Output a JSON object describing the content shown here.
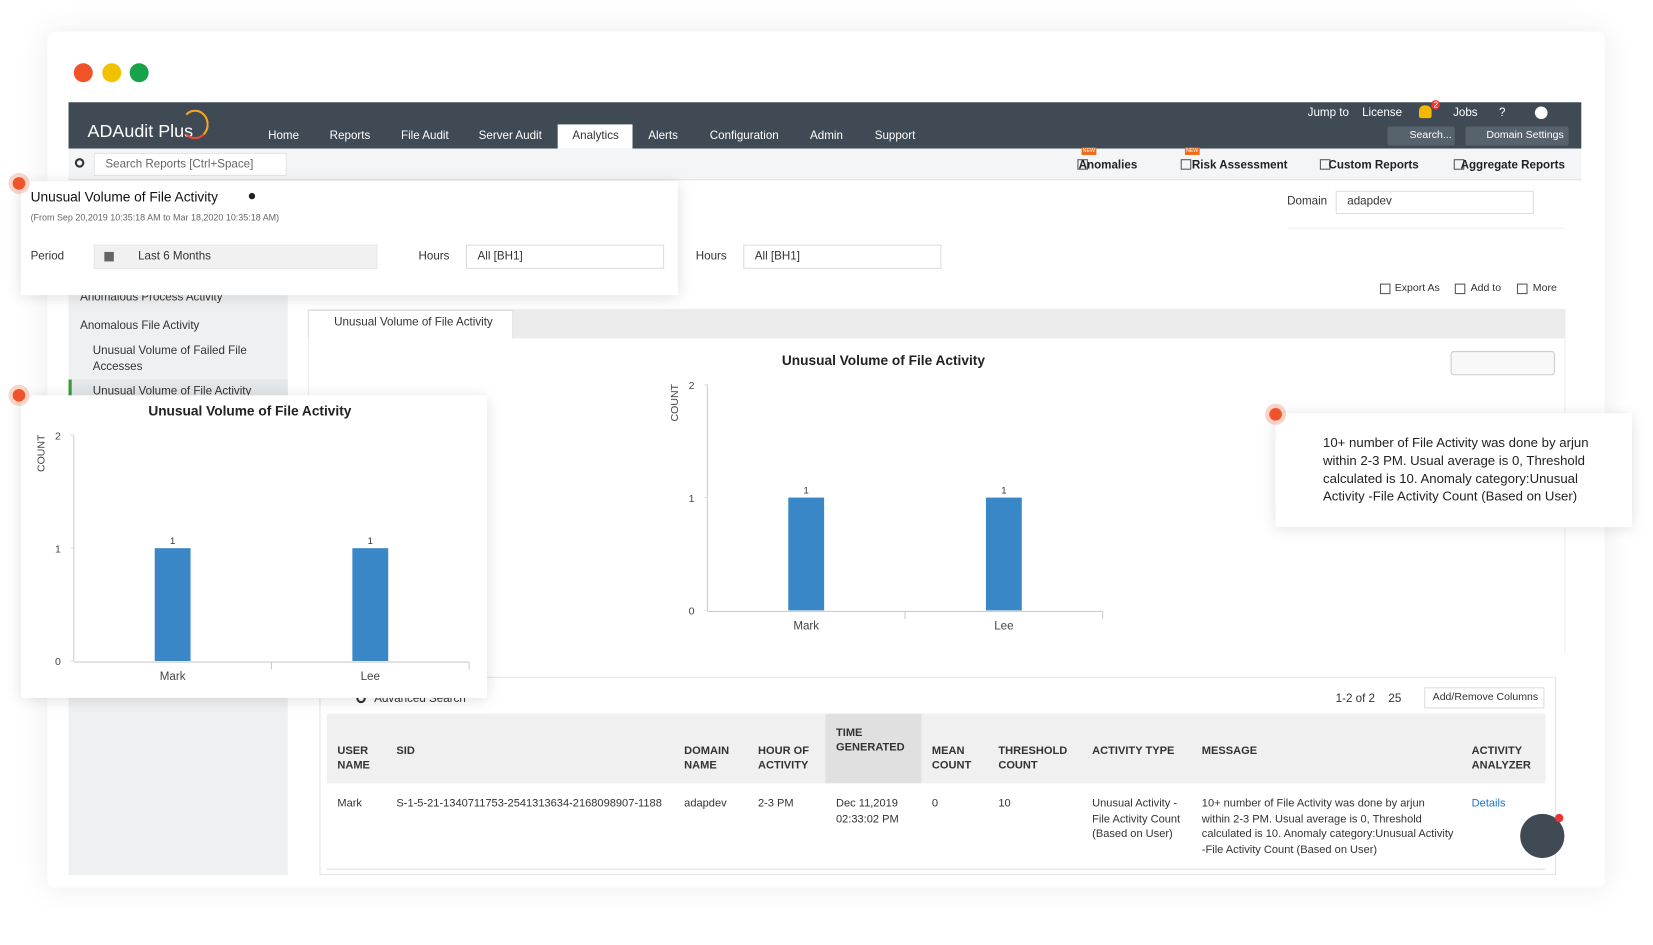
{
  "app": {
    "logo": "ADAudit Plus",
    "nav": [
      "Home",
      "Reports",
      "File Audit",
      "Server Audit",
      "Analytics",
      "Alerts",
      "Configuration",
      "Admin",
      "Support"
    ],
    "top_links": [
      "Jump to",
      "License",
      "Jobs",
      "?"
    ],
    "notification_count": "2",
    "search_button": "Search...",
    "domain_settings": "Domain Settings",
    "search_placeholder": "Search Reports [Ctrl+Space]",
    "new_badge": "NEW",
    "toolbar": [
      "Anomalies",
      "Risk Assessment",
      "Custom Reports",
      "Aggregate Reports"
    ]
  },
  "sidebar": [
    "Anomalous Process Activity",
    "Anomalous File Activity",
    "Unusual Volume of Failed File Accesses",
    "Unusual Volume of File Activity"
  ],
  "report": {
    "title": "Unusual Volume of File Activity",
    "range": "(From Sep 20,2019 10:35:18 AM to Mar 18,2020 10:35:18 AM)",
    "period_label": "Period",
    "period": "Last 6 Months",
    "hours_label": "Hours",
    "hours": "All [BH1]",
    "domain_label": "Domain",
    "domain": "adapdev",
    "actions": [
      "Export As",
      "Add to",
      "More"
    ],
    "tab": "Unusual Volume of File Activity"
  },
  "chart": {
    "type": "bar",
    "title": "Unusual Volume of File Activity",
    "y_label": "COUNT",
    "categories": [
      "Mark",
      "Lee"
    ],
    "values": [
      1,
      1
    ],
    "color": "#3a87c8",
    "ylim": [
      0,
      2
    ],
    "yticks": [
      0,
      1,
      2
    ]
  },
  "table": {
    "search": "Advanced Search",
    "pagination": "1-2 of 2",
    "page_size": "25",
    "add_remove": "Add/Remove Columns",
    "columns": [
      "USER NAME",
      "SID",
      "DOMAIN NAME",
      "HOUR OF ACTIVITY",
      "TIME GENERATED",
      "MEAN COUNT",
      "THRESHOLD COUNT",
      "ACTIVITY TYPE",
      "MESSAGE",
      "ACTIVITY ANALYZER"
    ],
    "rows": [
      [
        "Mark",
        "S-1-5-21-1340711753-2541313634-2168098907-1188",
        "adapdev",
        "2-3 PM",
        "Dec 11,2019 02:33:02 PM",
        0,
        10,
        "Unusual Activity -File Activity Count (Based on User)",
        "10+ number of File Activity was done by arjun within 2-3 PM. Usual average is 0, Threshold calculated is 10. Anomaly category:Unusual Activity -File Activity Count (Based on User)",
        "Details"
      ]
    ]
  }
}
